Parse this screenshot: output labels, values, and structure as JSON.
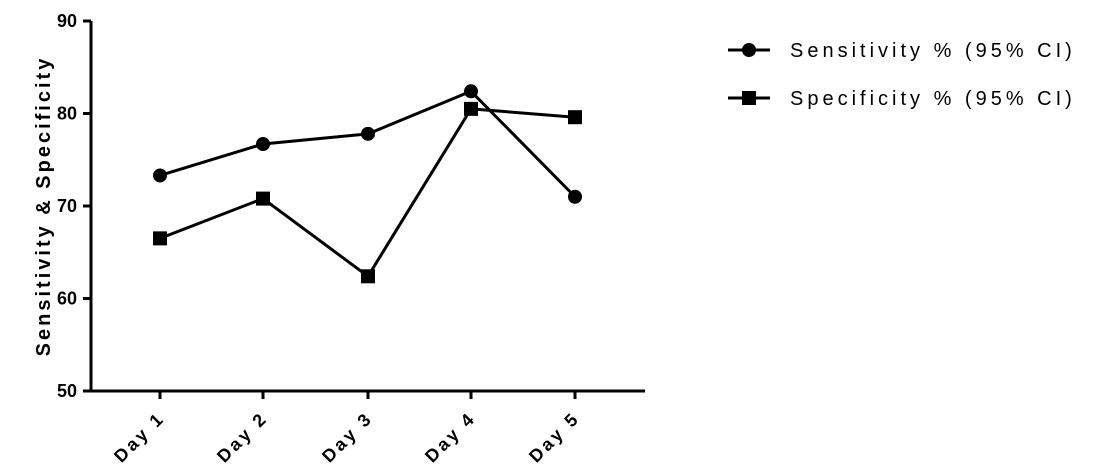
{
  "chart_data": {
    "type": "line",
    "categories": [
      "Day 1",
      "Day 2",
      "Day 3",
      "Day 4",
      "Day 5"
    ],
    "series": [
      {
        "name": "Sensitivity % (95% CI)",
        "marker": "circle",
        "values": [
          73.3,
          76.7,
          77.8,
          82.4,
          71.0
        ]
      },
      {
        "name": "Specificity % (95% CI)",
        "marker": "square",
        "values": [
          66.5,
          70.8,
          62.4,
          80.5,
          79.6
        ]
      }
    ],
    "title": "",
    "xlabel": "",
    "ylabel": "Sensitivity & Specificity",
    "ylim": [
      50,
      90
    ],
    "yticks": [
      50,
      60,
      70,
      80,
      90
    ],
    "grid": false,
    "legend_position": "top-right",
    "colors": {
      "line": "#000000",
      "background": "#ffffff"
    }
  }
}
